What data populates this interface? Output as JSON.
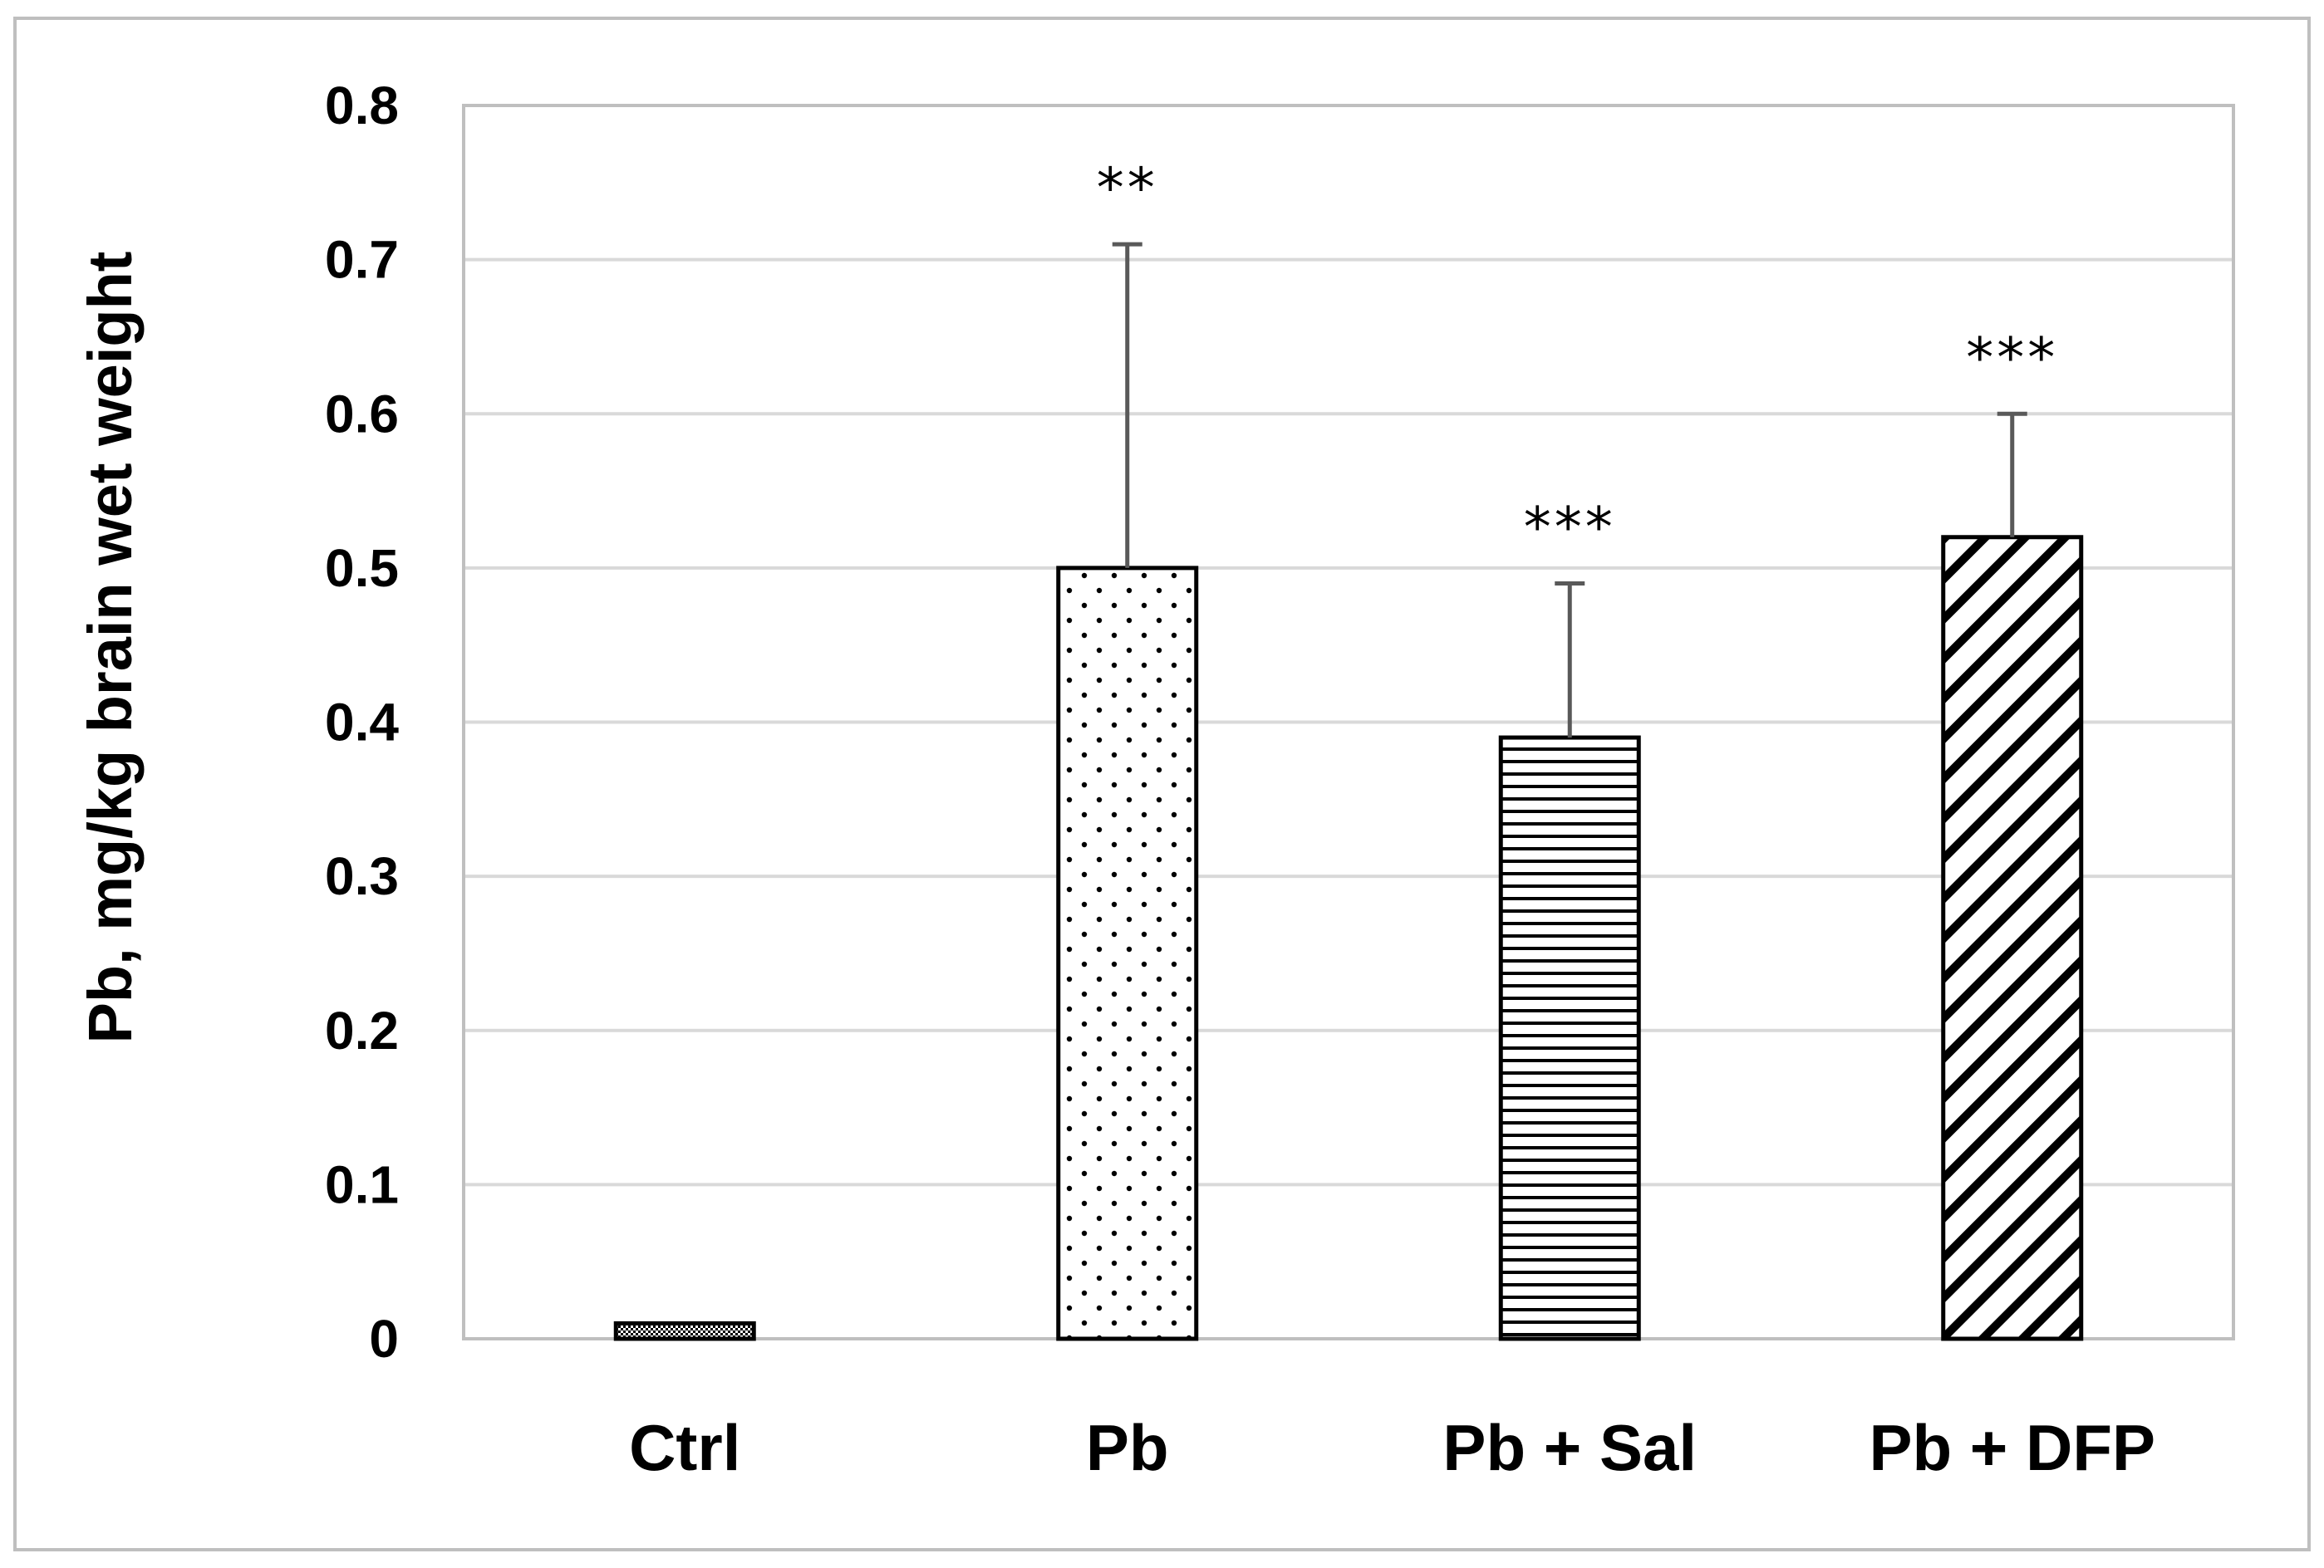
{
  "chart_data": {
    "type": "bar",
    "title": "",
    "xlabel": "",
    "ylabel": "Pb, mg/kg brain wet weight",
    "categories": [
      "Ctrl",
      "Pb",
      "Pb + Sal",
      "Pb + DFP"
    ],
    "values": [
      0.01,
      0.5,
      0.39,
      0.52
    ],
    "error_upper": [
      0.0,
      0.21,
      0.1,
      0.08
    ],
    "significance": [
      "",
      "**",
      "***",
      "***"
    ],
    "fill_patterns": [
      "checker",
      "dots",
      "horizontal-lines",
      "diagonal-lines"
    ],
    "ylim": [
      0,
      0.8
    ],
    "yticks": [
      "0",
      "0.1",
      "0.2",
      "0.3",
      "0.4",
      "0.5",
      "0.6",
      "0.7",
      "0.8"
    ],
    "ytick_values": [
      0,
      0.1,
      0.2,
      0.3,
      0.4,
      0.5,
      0.6,
      0.7,
      0.8
    ],
    "grid": true,
    "colors": {
      "bar_stroke": "#000000",
      "bar_fill": "#ffffff",
      "pattern": "#000000",
      "error_bar": "#595959",
      "grid": "#d9d9d9",
      "plot_border": "#bfbfbf",
      "frame": "#bfbfbf"
    }
  }
}
